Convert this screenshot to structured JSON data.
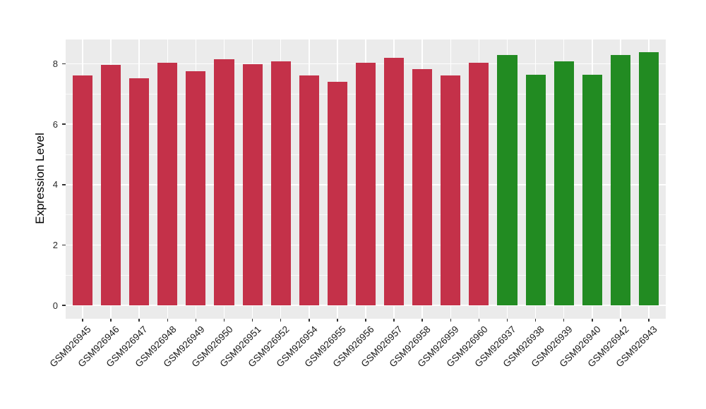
{
  "chart_data": {
    "type": "bar",
    "title": "",
    "xlabel": "",
    "ylabel": "Expression Level",
    "y_ticks": [
      0,
      2,
      4,
      6,
      8
    ],
    "y_minor_ticks": [
      1,
      3,
      5,
      7
    ],
    "ylim": [
      0,
      8.8
    ],
    "grid": true,
    "legend": "none",
    "panel_background": "#EBEBEB",
    "gridline_color": "#FFFFFF",
    "tick_color": "#333333",
    "colors": {
      "red": "#C43149",
      "green": "#228B22"
    },
    "bars": [
      {
        "label": "GSM926945",
        "value": 7.62,
        "group": "red"
      },
      {
        "label": "GSM926946",
        "value": 7.97,
        "group": "red"
      },
      {
        "label": "GSM926947",
        "value": 7.53,
        "group": "red"
      },
      {
        "label": "GSM926948",
        "value": 8.04,
        "group": "red"
      },
      {
        "label": "GSM926949",
        "value": 7.76,
        "group": "red"
      },
      {
        "label": "GSM926950",
        "value": 8.15,
        "group": "red"
      },
      {
        "label": "GSM926951",
        "value": 8.0,
        "group": "red"
      },
      {
        "label": "GSM926952",
        "value": 8.08,
        "group": "red"
      },
      {
        "label": "GSM926954",
        "value": 7.62,
        "group": "red"
      },
      {
        "label": "GSM926955",
        "value": 7.41,
        "group": "red"
      },
      {
        "label": "GSM926956",
        "value": 8.03,
        "group": "red"
      },
      {
        "label": "GSM926957",
        "value": 8.19,
        "group": "red"
      },
      {
        "label": "GSM926958",
        "value": 7.82,
        "group": "red"
      },
      {
        "label": "GSM926959",
        "value": 7.62,
        "group": "red"
      },
      {
        "label": "GSM926960",
        "value": 8.04,
        "group": "red"
      },
      {
        "label": "GSM926937",
        "value": 8.3,
        "group": "green"
      },
      {
        "label": "GSM926938",
        "value": 7.65,
        "group": "green"
      },
      {
        "label": "GSM926939",
        "value": 8.09,
        "group": "green"
      },
      {
        "label": "GSM926940",
        "value": 7.63,
        "group": "green"
      },
      {
        "label": "GSM926942",
        "value": 8.3,
        "group": "green"
      },
      {
        "label": "GSM926943",
        "value": 8.38,
        "group": "green"
      }
    ]
  }
}
